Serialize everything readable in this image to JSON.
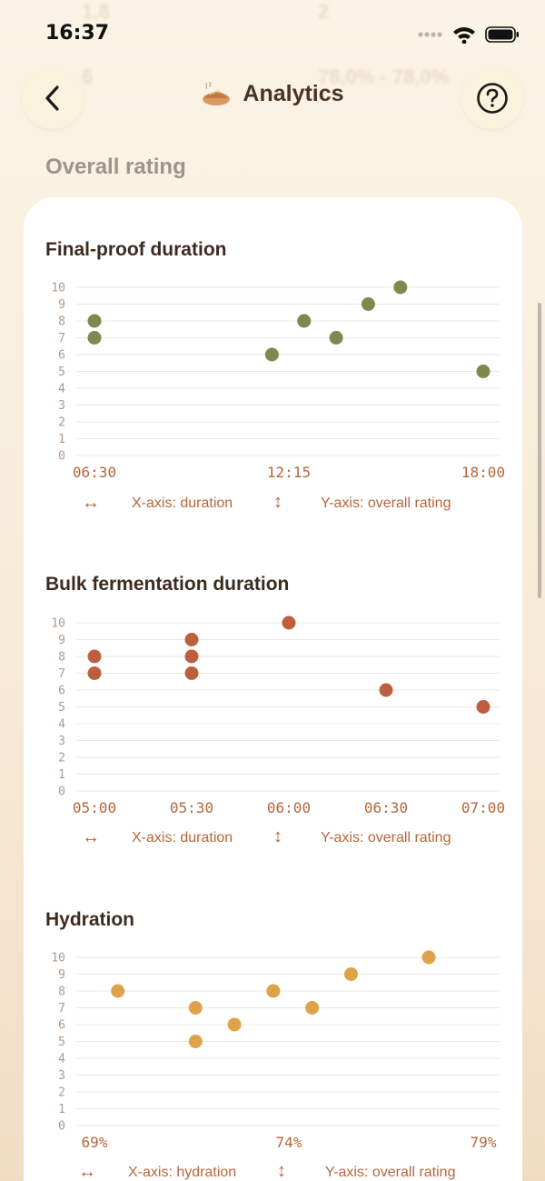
{
  "status_bar": {
    "time": "16:37"
  },
  "background_ghost": {
    "row1_a": "1,8",
    "row1_b": "2",
    "row2_a": "6",
    "row2_b": "78,0% - 78,0%"
  },
  "nav": {
    "title": "Analytics",
    "back_icon": "chevron-left-icon",
    "help_icon": "question-circle-icon",
    "title_icon": "bread-icon"
  },
  "section": {
    "title": "Overall rating"
  },
  "charts": [
    {
      "title": "Final-proof duration",
      "color": "#7b8a4e",
      "x_ticks": [
        "06:30",
        "12:15",
        "18:00"
      ],
      "legend_x": "X-axis: duration",
      "legend_y": "Y-axis: overall rating"
    },
    {
      "title": "Bulk fermentation duration",
      "color": "#bd5f3e",
      "x_ticks": [
        "05:00",
        "05:30",
        "06:00",
        "06:30",
        "07:00"
      ],
      "legend_x": "X-axis: duration",
      "legend_y": "Y-axis: overall rating"
    },
    {
      "title": "Hydration",
      "color": "#dea24b",
      "x_ticks": [
        "69%",
        "74%",
        "79%"
      ],
      "legend_x": "X-axis: hydration",
      "legend_y": "Y-axis: overall rating"
    }
  ],
  "chart_data": [
    {
      "type": "scatter",
      "title": "Final-proof duration",
      "xlabel": "X-axis: duration",
      "ylabel": "Y-axis: overall rating",
      "x_unit": "minutes",
      "xlim": [
        390,
        1080
      ],
      "ylim": [
        0,
        10
      ],
      "y_ticks": [
        0,
        1,
        2,
        3,
        4,
        5,
        6,
        7,
        8,
        9,
        10
      ],
      "x_ticks": [
        {
          "value": 390,
          "label": "06:30"
        },
        {
          "value": 735,
          "label": "12:15"
        },
        {
          "value": 1080,
          "label": "18:00"
        }
      ],
      "points": [
        {
          "x": 390,
          "y": 8
        },
        {
          "x": 390,
          "y": 7
        },
        {
          "x": 705,
          "y": 6
        },
        {
          "x": 762,
          "y": 8
        },
        {
          "x": 819,
          "y": 7
        },
        {
          "x": 876,
          "y": 9
        },
        {
          "x": 933,
          "y": 10
        },
        {
          "x": 1080,
          "y": 5
        }
      ]
    },
    {
      "type": "scatter",
      "title": "Bulk fermentation duration",
      "xlabel": "X-axis: duration",
      "ylabel": "Y-axis: overall rating",
      "x_unit": "minutes",
      "xlim": [
        300,
        420
      ],
      "ylim": [
        0,
        10
      ],
      "y_ticks": [
        0,
        1,
        2,
        3,
        4,
        5,
        6,
        7,
        8,
        9,
        10
      ],
      "x_ticks": [
        {
          "value": 300,
          "label": "05:00"
        },
        {
          "value": 330,
          "label": "05:30"
        },
        {
          "value": 360,
          "label": "06:00"
        },
        {
          "value": 390,
          "label": "06:30"
        },
        {
          "value": 420,
          "label": "07:00"
        }
      ],
      "points": [
        {
          "x": 300,
          "y": 8
        },
        {
          "x": 300,
          "y": 7
        },
        {
          "x": 330,
          "y": 9
        },
        {
          "x": 330,
          "y": 8
        },
        {
          "x": 330,
          "y": 7
        },
        {
          "x": 360,
          "y": 10
        },
        {
          "x": 390,
          "y": 6
        },
        {
          "x": 420,
          "y": 5
        }
      ]
    },
    {
      "type": "scatter",
      "title": "Hydration",
      "xlabel": "X-axis: hydration",
      "ylabel": "Y-axis: overall rating",
      "x_unit": "percent",
      "xlim": [
        69,
        79
      ],
      "ylim": [
        0,
        10
      ],
      "y_ticks": [
        0,
        1,
        2,
        3,
        4,
        5,
        6,
        7,
        8,
        9,
        10
      ],
      "x_ticks": [
        {
          "value": 69,
          "label": "69%"
        },
        {
          "value": 74,
          "label": "74%"
        },
        {
          "value": 79,
          "label": "79%"
        }
      ],
      "points": [
        {
          "x": 69.6,
          "y": 8
        },
        {
          "x": 71.6,
          "y": 7
        },
        {
          "x": 71.6,
          "y": 5
        },
        {
          "x": 72.6,
          "y": 6
        },
        {
          "x": 73.6,
          "y": 8
        },
        {
          "x": 74.6,
          "y": 7
        },
        {
          "x": 75.6,
          "y": 9
        },
        {
          "x": 77.6,
          "y": 10
        }
      ]
    }
  ]
}
